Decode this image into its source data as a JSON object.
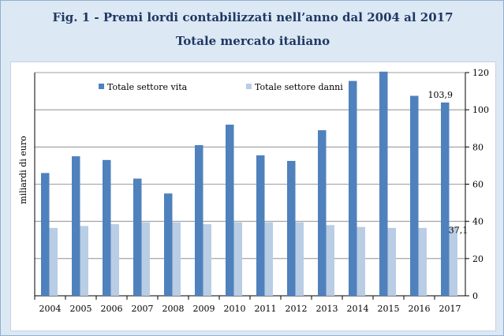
{
  "chart_data": {
    "type": "bar",
    "title": "Fig. 1 - Premi lordi contabilizzati nell’anno dal 2004 al 2017",
    "subtitle": "Totale mercato italiano",
    "ylabel": "miliardi di euro",
    "categories": [
      "2004",
      "2005",
      "2006",
      "2007",
      "2008",
      "2009",
      "2010",
      "2011",
      "2012",
      "2013",
      "2014",
      "2015",
      "2016",
      "2017"
    ],
    "series": [
      {
        "name": "Totale settore vita",
        "color": "#4f81bd",
        "values": [
          66,
          75,
          73,
          63,
          55,
          81,
          92,
          75.5,
          72.5,
          89,
          115.5,
          120.5,
          107.5,
          103.9
        ]
      },
      {
        "name": "Totale settore danni",
        "color": "#b9cde5",
        "values": [
          36.5,
          37.5,
          38.5,
          39.5,
          39.5,
          38.5,
          39.5,
          39.5,
          39.5,
          38,
          37,
          36.5,
          36.5,
          37.1
        ]
      }
    ],
    "data_labels": [
      {
        "series": 0,
        "index": 13,
        "text": "103,9"
      },
      {
        "series": 1,
        "index": 13,
        "text": "37,1"
      }
    ],
    "ylim": [
      0,
      120
    ],
    "yticks": [
      0,
      20,
      40,
      60,
      80,
      100,
      120
    ],
    "y_axis_side": "right",
    "grid": true,
    "legend_placement": "top"
  }
}
